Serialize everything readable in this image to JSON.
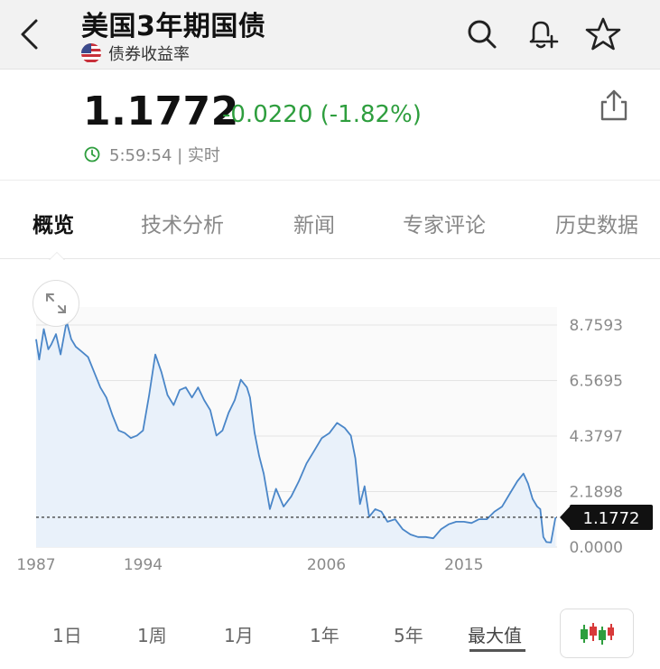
{
  "header": {
    "title": "美国3年期国债",
    "subtitle": "债券收益率"
  },
  "quote": {
    "price": "1.1772",
    "change": "-0.0220 (-1.82%)",
    "time": "5:59:54 | 实时",
    "change_color": "#2e9e3e"
  },
  "tabs": [
    {
      "label": "概览"
    },
    {
      "label": "技术分析"
    },
    {
      "label": "新闻"
    },
    {
      "label": "专家评论"
    },
    {
      "label": "历史数据"
    }
  ],
  "periods": [
    {
      "label": "1日"
    },
    {
      "label": "1周"
    },
    {
      "label": "1月"
    },
    {
      "label": "1年"
    },
    {
      "label": "5年"
    },
    {
      "label": "最大值"
    }
  ],
  "chart_data": {
    "type": "area",
    "title": "",
    "xlabel": "",
    "ylabel": "",
    "x_ticks": [
      "1987",
      "1994",
      "2006",
      "2015"
    ],
    "y_ticks": [
      "8.7593",
      "6.5695",
      "4.3797",
      "2.1898",
      "0.0000"
    ],
    "ylim": [
      0,
      8.7593
    ],
    "xlim": [
      1987,
      2021.1
    ],
    "current_value": "1.1772",
    "grid": true,
    "line_color": "#4a86c8",
    "series": [
      {
        "x": [
          1987.0,
          1987.2,
          1987.5,
          1987.8,
          1988.0,
          1988.3,
          1988.6,
          1989.0,
          1989.3,
          1989.6,
          1990.0,
          1990.4,
          1990.8,
          1991.2,
          1991.6,
          1992.0,
          1992.4,
          1992.8,
          1993.2,
          1993.6,
          1994.0,
          1994.4,
          1994.8,
          1995.2,
          1995.6,
          1996.0,
          1996.4,
          1996.8,
          1997.2,
          1997.6,
          1998.0,
          1998.4,
          1998.8,
          1999.2,
          1999.6,
          2000.0,
          2000.4,
          2000.8,
          2001.0,
          2001.3,
          2001.6,
          2001.9,
          2002.3,
          2002.7,
          2003.2,
          2003.7,
          2004.2,
          2004.7,
          2005.2,
          2005.7,
          2006.2,
          2006.7,
          2007.2,
          2007.6,
          2007.9,
          2008.2,
          2008.5,
          2008.8,
          2009.2,
          2009.6,
          2010.0,
          2010.5,
          2011.0,
          2011.5,
          2012.0,
          2012.5,
          2013.0,
          2013.5,
          2014.0,
          2014.5,
          2015.0,
          2015.5,
          2016.0,
          2016.5,
          2017.0,
          2017.5,
          2018.0,
          2018.5,
          2018.9,
          2019.2,
          2019.5,
          2019.8,
          2020.0,
          2020.2,
          2020.4,
          2020.7,
          2021.0
        ],
        "y": [
          8.2,
          7.4,
          8.6,
          7.8,
          8.0,
          8.4,
          7.6,
          8.9,
          8.2,
          7.9,
          7.7,
          7.5,
          6.9,
          6.3,
          5.9,
          5.2,
          4.6,
          4.5,
          4.3,
          4.4,
          4.6,
          6.0,
          7.6,
          6.9,
          6.0,
          5.6,
          6.2,
          6.3,
          5.9,
          6.3,
          5.8,
          5.4,
          4.4,
          4.6,
          5.3,
          5.8,
          6.6,
          6.3,
          5.9,
          4.5,
          3.6,
          2.9,
          1.5,
          2.3,
          1.6,
          2.0,
          2.6,
          3.3,
          3.8,
          4.3,
          4.5,
          4.9,
          4.7,
          4.4,
          3.5,
          1.7,
          2.4,
          1.2,
          1.5,
          1.4,
          1.0,
          1.1,
          0.7,
          0.5,
          0.4,
          0.4,
          0.35,
          0.7,
          0.9,
          1.0,
          1.0,
          0.95,
          1.1,
          1.1,
          1.4,
          1.6,
          2.1,
          2.6,
          2.9,
          2.5,
          1.9,
          1.6,
          1.5,
          0.4,
          0.2,
          0.18,
          1.18
        ]
      }
    ]
  }
}
